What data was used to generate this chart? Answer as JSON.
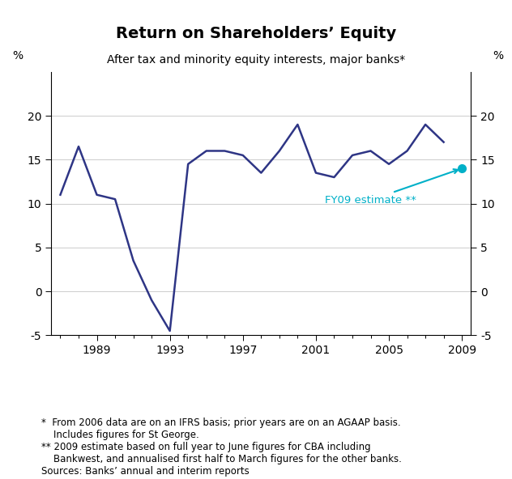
{
  "title": "Return on Shareholders’ Equity",
  "subtitle": "After tax and minority equity interests, major banks*",
  "ylabel_left": "%",
  "ylabel_right": "%",
  "xlim": [
    1986.5,
    2009.5
  ],
  "ylim": [
    -5,
    25
  ],
  "yticks": [
    -5,
    0,
    5,
    10,
    15,
    20
  ],
  "xticks": [
    1989,
    1993,
    1997,
    2001,
    2005,
    2009
  ],
  "line_color": "#2e3585",
  "line_width": 1.8,
  "x_data": [
    1987,
    1988,
    1989,
    1990,
    1991,
    1992,
    1993,
    1994,
    1995,
    1996,
    1997,
    1998,
    1999,
    2000,
    2001,
    2002,
    2003,
    2004,
    2005,
    2006,
    2007,
    2008
  ],
  "y_data": [
    11.0,
    16.5,
    11.0,
    10.5,
    3.5,
    -1.0,
    -4.5,
    14.5,
    16.0,
    16.0,
    15.5,
    13.5,
    16.0,
    19.0,
    13.5,
    13.0,
    15.5,
    16.0,
    14.5,
    16.0,
    19.0,
    17.0
  ],
  "estimate_x": 2009,
  "estimate_y": 14.0,
  "estimate_color": "#00b0c8",
  "estimate_label": "FY09 estimate **",
  "footnote_lines": [
    "*  From 2006 data are on an IFRS basis; prior years are on an AGAAP basis.",
    "    Includes figures for St George.",
    "** 2009 estimate based on full year to June figures for CBA including",
    "    Bankwest, and annualised first half to March figures for the other banks.",
    "Sources: Banks’ annual and interim reports"
  ],
  "grid_color": "#cccccc",
  "grid_lw": 0.7
}
